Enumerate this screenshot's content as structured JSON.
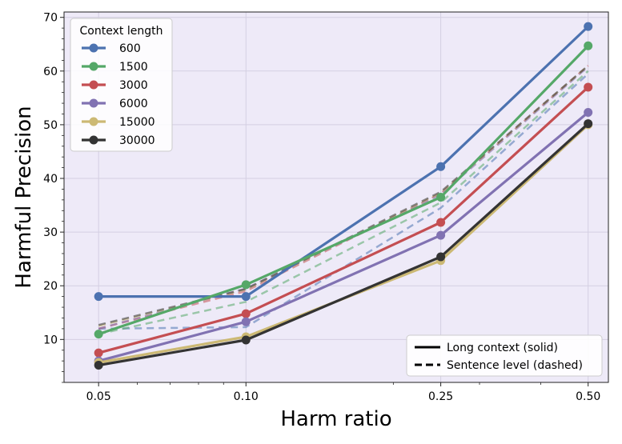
{
  "chart_data": {
    "type": "line",
    "title": "",
    "xlabel": "Harm ratio",
    "ylabel": "Harmful Precision",
    "xscale": "log",
    "x": [
      0.05,
      0.1,
      0.25,
      0.5
    ],
    "x_tick_labels": [
      "0.05",
      "0.10",
      "0.25",
      "0.50"
    ],
    "y_ticks": [
      10,
      20,
      30,
      40,
      50,
      60,
      70
    ],
    "y_tick_labels": [
      "10",
      "20",
      "30",
      "40",
      "50",
      "60",
      "70"
    ],
    "xlim": [
      0.0425,
      0.55
    ],
    "ylim": [
      2,
      71
    ],
    "grid": true,
    "legend_title": "Context length",
    "legend_position": "top-left",
    "style_legend_position": "bottom-right",
    "style_legend": [
      {
        "label": "Long context (solid)",
        "dash": "solid"
      },
      {
        "label": "Sentence level (dashed)",
        "dash": "dashed"
      }
    ],
    "series": [
      {
        "name": "600",
        "color": "#4c72b0",
        "values": [
          18,
          18,
          42.2,
          68.3
        ],
        "dashed_values": [
          12,
          12.3,
          34.5,
          59.5
        ]
      },
      {
        "name": "1500",
        "color": "#55a868",
        "values": [
          11,
          20.2,
          36.5,
          64.7
        ],
        "dashed_values": [
          11,
          17,
          35.5,
          60
        ]
      },
      {
        "name": "3000",
        "color": "#c44e52",
        "values": [
          7.5,
          14.8,
          31.8,
          57
        ],
        "dashed_values": [
          12,
          19,
          37.2,
          61
        ]
      },
      {
        "name": "6000",
        "color": "#8172b2",
        "values": [
          6,
          13.3,
          29.4,
          52.3
        ],
        "dashed_values": [
          12,
          19.5,
          37,
          60.8
        ]
      },
      {
        "name": "15000",
        "color": "#ccb974",
        "values": [
          5.7,
          10.5,
          24.7,
          50
        ],
        "dashed_values": [
          12.5,
          19.3,
          37.3,
          61
        ]
      },
      {
        "name": "30000",
        "color": "#333333",
        "values": [
          5.2,
          9.9,
          25.4,
          50.2
        ],
        "dashed_values": [
          12.7,
          19.4,
          37.5,
          61
        ]
      }
    ]
  }
}
